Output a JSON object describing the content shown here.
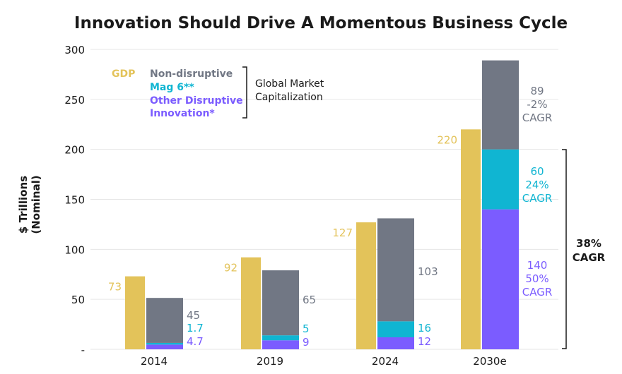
{
  "colors": {
    "gdp": "#E3C35A",
    "non_disruptive": "#717784",
    "mag6": "#10B5D2",
    "other_disruptive": "#7B5CFF",
    "text": "#1a1a1a",
    "grid": "#e6e6e6"
  },
  "chart_data": {
    "type": "bar",
    "title": "Innovation Should Drive A Momentous Business Cycle",
    "ylabel_lines": [
      "$ Trillions",
      "(Nominal)"
    ],
    "ylim": [
      0,
      300
    ],
    "yticks": [
      {
        "value": 300,
        "label": "300"
      },
      {
        "value": 250,
        "label": "250"
      },
      {
        "value": 200,
        "label": "200"
      },
      {
        "value": 150,
        "label": "150"
      },
      {
        "value": 100,
        "label": "100"
      },
      {
        "value": 50,
        "label": "50"
      },
      {
        "value": 0,
        "label": "-"
      }
    ],
    "grid": true,
    "categories": [
      "2014",
      "2019",
      "2024",
      "2030e"
    ],
    "series": [
      {
        "name": "GDP",
        "key": "gdp",
        "values": [
          73,
          92,
          127,
          220
        ],
        "labels": [
          "73",
          "92",
          "127",
          "220"
        ]
      },
      {
        "name": "Other Disruptive Innovation*",
        "key": "other_disruptive",
        "values": [
          4.7,
          9,
          12,
          140
        ],
        "labels": [
          "4.7",
          "9",
          "12",
          "140"
        ]
      },
      {
        "name": "Mag 6**",
        "key": "mag6",
        "values": [
          1.7,
          5,
          16,
          60
        ],
        "labels": [
          "1.7",
          "5",
          "16",
          "60"
        ]
      },
      {
        "name": "Non-disruptive",
        "key": "non_disruptive",
        "values": [
          45,
          65,
          103,
          89
        ],
        "labels": [
          "45",
          "65",
          "103",
          "89"
        ]
      }
    ],
    "legend": {
      "gdp": "GDP",
      "non_disruptive": "Non-disruptive",
      "mag6": "Mag 6**",
      "other_lines": [
        "Other Disruptive",
        "Innovation*"
      ],
      "bracket_lines": [
        "Global Market",
        "Capitalization"
      ]
    },
    "annotations_2030": {
      "non_disruptive": [
        "89",
        "-2%",
        "CAGR"
      ],
      "mag6": [
        "60",
        "24%",
        "CAGR"
      ],
      "other": [
        "140",
        "50%",
        "CAGR"
      ],
      "total": [
        "38%",
        "CAGR"
      ]
    }
  }
}
